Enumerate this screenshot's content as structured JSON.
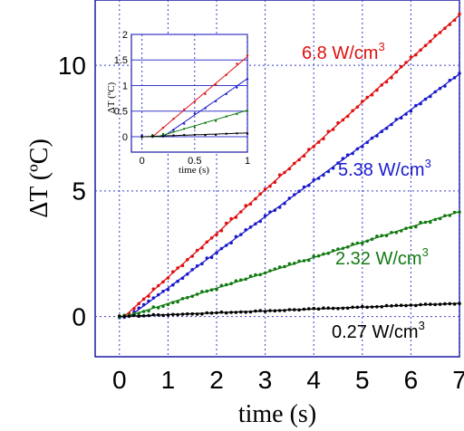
{
  "colors": {
    "frame": "#1a1aa6",
    "grid": "#3a3acc",
    "red": "#e01010",
    "blue": "#1a1acc",
    "green": "#127a12",
    "black": "#000000"
  },
  "chart_data": [
    {
      "type": "scatter",
      "xlabel": "time (s)",
      "ylabel": "ΔT (ºC)",
      "xlim": [
        -0.5,
        7
      ],
      "ylim": [
        -1.6,
        12.6
      ],
      "xticks": [
        "0",
        "1",
        "2",
        "3",
        "4",
        "5",
        "6",
        "7"
      ],
      "yticks": [
        "0",
        "5",
        "10"
      ],
      "grid": true,
      "series": [
        {
          "name": "6.8 W/cm",
          "sup": "3",
          "color": "red",
          "onset": 0.1,
          "slope": 1.74,
          "noise": 0.07
        },
        {
          "name": "5.38 W/cm",
          "sup": "3",
          "color": "blue",
          "onset": 0.2,
          "slope": 1.42,
          "noise": 0.06
        },
        {
          "name": "2.32 W/cm",
          "sup": "3",
          "color": "green",
          "onset": 0.15,
          "slope": 0.61,
          "noise": 0.06
        },
        {
          "name": "0.27 W/cm",
          "sup": "3",
          "color": "black",
          "onset": 0.0,
          "slope": 0.075,
          "noise": 0.025
        }
      ]
    },
    {
      "type": "scatter",
      "inset": true,
      "xlabel": "time (s)",
      "ylabel": "ΔT (ºC)",
      "xlim": [
        -0.1,
        1
      ],
      "ylim": [
        -0.3,
        2
      ],
      "xticks": [
        "0",
        "0.5",
        "1"
      ],
      "yticks": [
        "0",
        "0.5",
        "1",
        "1.5",
        "2"
      ],
      "grid": true
    }
  ]
}
